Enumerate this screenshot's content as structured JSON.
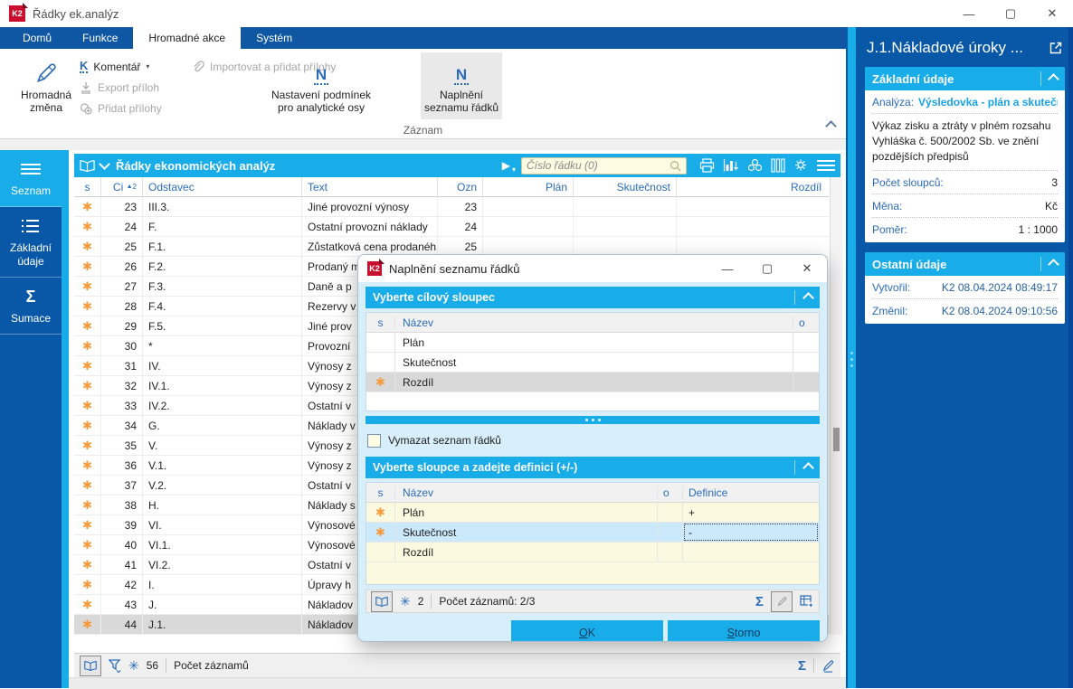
{
  "window": {
    "title": "Řádky ek.analýz",
    "minimize": "—",
    "maximize": "▢",
    "close": "✕",
    "logo_text": "K2"
  },
  "ribbon": {
    "tabs": [
      {
        "label": "Domů",
        "active": false
      },
      {
        "label": "Funkce",
        "active": false
      },
      {
        "label": "Hromadné akce",
        "active": true
      },
      {
        "label": "Systém",
        "active": false
      }
    ],
    "group_label": "Záznam",
    "buttons": {
      "hromadna_line1": "Hromadná",
      "hromadna_line2": "změna",
      "komentar": "Komentář",
      "export_priloh": "Export příloh",
      "pridat_prilohy": "Přidat přílohy",
      "importovat": "Importovat a přidat přílohy",
      "nastaveni_line1": "Nastavení podmínek",
      "nastaveni_line2": "pro analytické osy",
      "naplneni_line1": "Naplnění",
      "naplneni_line2": "seznamu řádků",
      "n_glyph": "N",
      "k_glyph": "K"
    }
  },
  "sidebar": {
    "items": [
      {
        "label": "Seznam",
        "active": true
      },
      {
        "label": "Základní údaje",
        "active": false
      },
      {
        "label": "Sumace",
        "active": false
      }
    ]
  },
  "browse": {
    "title": "Řádky ekonomických analýz",
    "search_placeholder": "Číslo řádku (0)",
    "sort_indicator": "▲",
    "sort_order": "2",
    "columns": {
      "s": "s",
      "ci": "Ci",
      "odstavec": "Odstavec",
      "text": "Text",
      "ozn": "Ozn",
      "plan": "Plán",
      "skutecnost": "Skutečnost",
      "rozdil": "Rozdíl"
    },
    "rows": [
      {
        "star": true,
        "ci": "23",
        "odstavec": "III.3.",
        "text": "Jiné provozní výnosy",
        "ozn": "23",
        "plan": "",
        "skutecnost": "",
        "rozdil": "",
        "selected": false
      },
      {
        "star": true,
        "ci": "24",
        "odstavec": "F.",
        "text": "Ostatní provozní náklady",
        "ozn": "24",
        "plan": "",
        "skutecnost": "",
        "rozdil": "",
        "selected": false
      },
      {
        "star": true,
        "ci": "25",
        "odstavec": "F.1.",
        "text": "Zůstatková cena prodanéh...",
        "ozn": "25",
        "plan": "",
        "skutecnost": "",
        "rozdil": "",
        "selected": false
      },
      {
        "star": true,
        "ci": "26",
        "odstavec": "F.2.",
        "text": "Prodaný m",
        "ozn": "",
        "plan": "",
        "skutecnost": "",
        "rozdil": "",
        "selected": false
      },
      {
        "star": true,
        "ci": "27",
        "odstavec": "F.3.",
        "text": "Daně a p",
        "ozn": "",
        "plan": "",
        "skutecnost": "",
        "rozdil": "",
        "selected": false
      },
      {
        "star": true,
        "ci": "28",
        "odstavec": "F.4.",
        "text": "Rezervy v",
        "ozn": "",
        "plan": "",
        "skutecnost": "",
        "rozdil": "",
        "selected": false
      },
      {
        "star": true,
        "ci": "29",
        "odstavec": "F.5.",
        "text": "Jiné prov",
        "ozn": "",
        "plan": "",
        "skutecnost": "",
        "rozdil": "",
        "selected": false
      },
      {
        "star": true,
        "ci": "30",
        "odstavec": "*",
        "text": "Provozní",
        "ozn": "",
        "plan": "",
        "skutecnost": "",
        "rozdil": "",
        "selected": false
      },
      {
        "star": true,
        "ci": "31",
        "odstavec": "IV.",
        "text": "Výnosy z",
        "ozn": "",
        "plan": "",
        "skutecnost": "",
        "rozdil": "",
        "selected": false
      },
      {
        "star": true,
        "ci": "32",
        "odstavec": "IV.1.",
        "text": "Výnosy z",
        "ozn": "",
        "plan": "",
        "skutecnost": "",
        "rozdil": "",
        "selected": false
      },
      {
        "star": true,
        "ci": "33",
        "odstavec": "IV.2.",
        "text": "Ostatní v",
        "ozn": "",
        "plan": "",
        "skutecnost": "",
        "rozdil": "",
        "selected": false
      },
      {
        "star": true,
        "ci": "34",
        "odstavec": "G.",
        "text": "Náklady v",
        "ozn": "",
        "plan": "",
        "skutecnost": "",
        "rozdil": "",
        "selected": false
      },
      {
        "star": true,
        "ci": "35",
        "odstavec": "V.",
        "text": "Výnosy z",
        "ozn": "",
        "plan": "",
        "skutecnost": "",
        "rozdil": "",
        "selected": false
      },
      {
        "star": true,
        "ci": "36",
        "odstavec": "V.1.",
        "text": "Výnosy z",
        "ozn": "",
        "plan": "",
        "skutecnost": "",
        "rozdil": "",
        "selected": false
      },
      {
        "star": true,
        "ci": "37",
        "odstavec": "V.2.",
        "text": "Ostatní v",
        "ozn": "",
        "plan": "",
        "skutecnost": "",
        "rozdil": "",
        "selected": false
      },
      {
        "star": true,
        "ci": "38",
        "odstavec": "H.",
        "text": "Náklady s",
        "ozn": "",
        "plan": "",
        "skutecnost": "",
        "rozdil": "",
        "selected": false
      },
      {
        "star": true,
        "ci": "39",
        "odstavec": "VI.",
        "text": "Výnosové",
        "ozn": "",
        "plan": "",
        "skutecnost": "",
        "rozdil": "",
        "selected": false
      },
      {
        "star": true,
        "ci": "40",
        "odstavec": "VI.1.",
        "text": "Výnosové",
        "ozn": "",
        "plan": "",
        "skutecnost": "",
        "rozdil": "",
        "selected": false
      },
      {
        "star": true,
        "ci": "41",
        "odstavec": "VI.2.",
        "text": "Ostatní v",
        "ozn": "",
        "plan": "",
        "skutecnost": "",
        "rozdil": "",
        "selected": false
      },
      {
        "star": true,
        "ci": "42",
        "odstavec": "I.",
        "text": "Úpravy h",
        "ozn": "",
        "plan": "",
        "skutecnost": "",
        "rozdil": "",
        "selected": false
      },
      {
        "star": true,
        "ci": "43",
        "odstavec": "J.",
        "text": "Nákladov",
        "ozn": "",
        "plan": "",
        "skutecnost": "",
        "rozdil": "",
        "selected": false
      },
      {
        "star": true,
        "ci": "44",
        "odstavec": "J.1.",
        "text": "Nákladov",
        "ozn": "",
        "plan": "",
        "skutecnost": "",
        "rozdil": "",
        "selected": true
      }
    ],
    "status": {
      "count_badge": "56",
      "count_label": "Počet záznamů"
    }
  },
  "dialog": {
    "title": "Naplnění seznamu řádků",
    "minimize": "—",
    "maximize": "▢",
    "close": "✕",
    "section_target": {
      "header": "Vyberte cílový sloupec",
      "columns": {
        "s": "s",
        "nazev": "Název",
        "o": "o"
      },
      "rows": [
        {
          "star": false,
          "nazev": "Plán",
          "o": "",
          "selected": false
        },
        {
          "star": false,
          "nazev": "Skutečnost",
          "o": "",
          "selected": false
        },
        {
          "star": true,
          "nazev": "Rozdíl",
          "o": "",
          "selected": true
        }
      ]
    },
    "clear_checkbox": {
      "label": "Vymazat seznam řádků",
      "checked": false
    },
    "section_definition": {
      "header": "Vyberte sloupce a zadejte definici (+/-)",
      "columns": {
        "s": "s",
        "nazev": "Název",
        "o": "o",
        "definice": "Definice"
      },
      "rows": [
        {
          "star": true,
          "nazev": "Plán",
          "o": "",
          "definice": "+",
          "focused": false
        },
        {
          "star": true,
          "nazev": "Skutečnost",
          "o": "",
          "definice": "-",
          "focused": true
        },
        {
          "star": false,
          "nazev": "Rozdíl",
          "o": "",
          "definice": "",
          "focused": false
        }
      ]
    },
    "status": {
      "count_badge": "2",
      "count_label": "Počet záznamů: 2/3"
    },
    "buttons": {
      "ok": "OK",
      "storno": "Storno"
    }
  },
  "panel": {
    "title": "J.1.Nákladové úroky ...",
    "cards": [
      {
        "title": "Základní údaje",
        "analyza_label": "Analýza:",
        "analyza_value": "Výsledovka - plán a skutečn...",
        "description": "Výkaz zisku a ztráty v plném rozsahu Vyhláška č. 500/2002 Sb. ve znění pozdějších předpisů",
        "fields": [
          {
            "label": "Počet sloupců:",
            "value": "3",
            "blue": false
          },
          {
            "label": "Měna:",
            "value": "Kč",
            "blue": false
          },
          {
            "label": "Poměr:",
            "value": "1 : 1000",
            "blue": false
          }
        ]
      },
      {
        "title": "Ostatní údaje",
        "fields": [
          {
            "label": "Vytvořil:",
            "value": "K2 08.04.2024 08:49:17",
            "blue": true
          },
          {
            "label": "Změnil:",
            "value": "K2 08.04.2024 09:10:56",
            "blue": true
          }
        ]
      }
    ]
  },
  "icons": {
    "row_marker": "✱",
    "record_marker": "✳",
    "sigma": "Σ",
    "play": "▶",
    "caret_down": "▾"
  },
  "colors": {
    "accent_cyan": "#18ACE8",
    "dark_blue": "#0958A7",
    "tab_blue": "#0F57A2",
    "marker_orange": "#F59B3C",
    "selection_gray": "#D9D9D9",
    "input_yellow": "#FDFBE2",
    "logo_red": "#C8102E"
  }
}
